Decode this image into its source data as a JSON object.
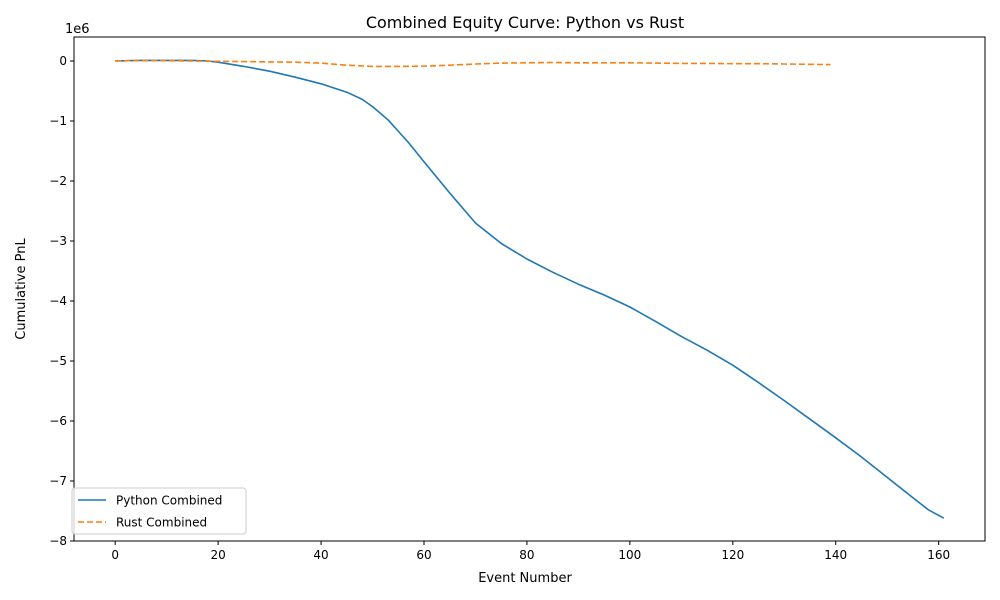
{
  "chart_data": {
    "type": "line",
    "title": "Combined Equity Curve: Python vs Rust",
    "xlabel": "Event Number",
    "ylabel": "Cumulative PnL",
    "y_offset_label": "1e6",
    "xlim": [
      -8,
      169
    ],
    "ylim": [
      -8.0,
      0.4
    ],
    "xticks": [
      0,
      20,
      40,
      60,
      80,
      100,
      120,
      140,
      160
    ],
    "xtick_labels": [
      "0",
      "20",
      "40",
      "60",
      "80",
      "100",
      "120",
      "140",
      "160"
    ],
    "yticks": [
      0,
      -1,
      -2,
      -3,
      -4,
      -5,
      -6,
      -7,
      -8
    ],
    "ytick_labels": [
      "0",
      "−1",
      "−2",
      "−3",
      "−4",
      "−5",
      "−6",
      "−7",
      "−8"
    ],
    "grid": false,
    "legend_position": "lower-left",
    "series": [
      {
        "name": "Python Combined",
        "color": "#1f77b4",
        "style": "solid",
        "x": [
          0,
          5,
          10,
          15,
          18,
          20,
          25,
          30,
          35,
          40,
          45,
          48,
          50,
          53,
          57,
          60,
          65,
          70,
          75,
          80,
          85,
          90,
          95,
          100,
          105,
          110,
          115,
          120,
          125,
          130,
          135,
          140,
          145,
          150,
          155,
          158,
          161
        ],
        "values": [
          0,
          0.01,
          0.01,
          0.01,
          0.0,
          -0.02,
          -0.09,
          -0.17,
          -0.27,
          -0.38,
          -0.52,
          -0.64,
          -0.76,
          -0.98,
          -1.36,
          -1.68,
          -2.2,
          -2.7,
          -3.04,
          -3.3,
          -3.52,
          -3.72,
          -3.9,
          -4.1,
          -4.34,
          -4.59,
          -4.82,
          -5.07,
          -5.36,
          -5.66,
          -5.97,
          -6.28,
          -6.6,
          -6.94,
          -7.28,
          -7.48,
          -7.62
        ]
      },
      {
        "name": "Rust Combined",
        "color": "#ff7f0e",
        "style": "dashed",
        "x": [
          0,
          5,
          10,
          15,
          20,
          25,
          30,
          35,
          40,
          45,
          50,
          55,
          60,
          65,
          70,
          75,
          80,
          85,
          90,
          95,
          100,
          105,
          110,
          115,
          120,
          125,
          130,
          135,
          139
        ],
        "values": [
          0,
          0.01,
          0.005,
          0.0,
          -0.005,
          -0.01,
          -0.015,
          -0.02,
          -0.035,
          -0.07,
          -0.09,
          -0.09,
          -0.085,
          -0.07,
          -0.05,
          -0.035,
          -0.03,
          -0.025,
          -0.03,
          -0.03,
          -0.03,
          -0.035,
          -0.04,
          -0.04,
          -0.045,
          -0.045,
          -0.05,
          -0.055,
          -0.06
        ]
      }
    ]
  }
}
